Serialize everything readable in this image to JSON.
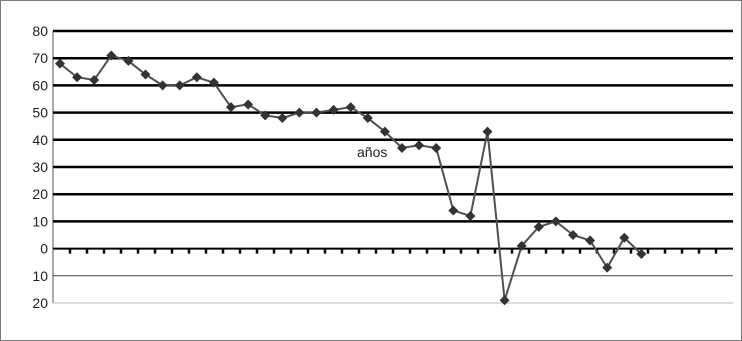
{
  "chart_data": {
    "type": "line",
    "title": "",
    "xlabel": "",
    "ylabel": "",
    "ylim": [
      -20,
      80
    ],
    "y_ticks": [
      80,
      70,
      60,
      50,
      40,
      30,
      20,
      10,
      0,
      -10,
      -20
    ],
    "y_tick_labels": [
      "80",
      "70",
      "60",
      "50",
      "40",
      "30",
      "20",
      "10",
      "0",
      "10",
      "20"
    ],
    "grid": true,
    "legend": "none",
    "line_color": "#505050",
    "marker": "diamond",
    "annotation": "años",
    "series": [
      {
        "values": [
          68,
          63,
          62,
          71,
          69,
          64,
          60,
          60,
          63,
          61,
          52,
          53,
          49,
          48,
          50,
          50,
          51,
          52,
          48,
          43,
          37,
          38,
          37,
          14,
          12,
          43,
          -19,
          1,
          8,
          10,
          5,
          3,
          -7,
          4,
          -2
        ]
      }
    ]
  }
}
